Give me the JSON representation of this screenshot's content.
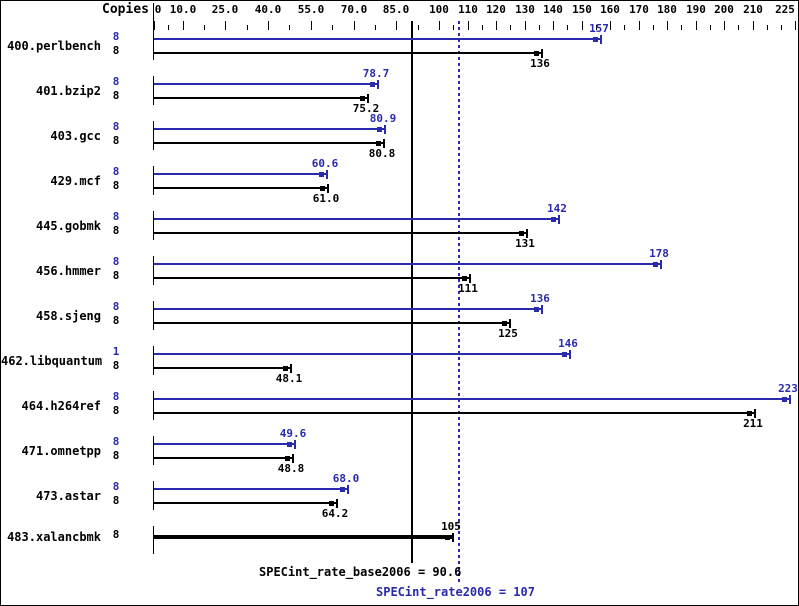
{
  "chart_data": {
    "type": "bar",
    "orientation": "horizontal",
    "title": "",
    "copies_header": "Copies",
    "accent_color": "#2a2aad",
    "series_colors": {
      "peak": "#2a2aad",
      "base": "#000000"
    },
    "axis": {
      "xlim": [
        0,
        235
      ],
      "grid": false,
      "major_ticks": [
        {
          "value": 0,
          "label": "0"
        },
        {
          "value": 10,
          "label": "10.0"
        },
        {
          "value": 25,
          "label": "25.0"
        },
        {
          "value": 40,
          "label": "40.0"
        },
        {
          "value": 55,
          "label": "55.0"
        },
        {
          "value": 70,
          "label": "70.0"
        },
        {
          "value": 85,
          "label": "85.0"
        },
        {
          "value": 100,
          "label": "100"
        },
        {
          "value": 110,
          "label": "110"
        },
        {
          "value": 120,
          "label": "120"
        },
        {
          "value": 130,
          "label": "130"
        },
        {
          "value": 140,
          "label": "140"
        },
        {
          "value": 150,
          "label": "150"
        },
        {
          "value": 160,
          "label": "160"
        },
        {
          "value": 170,
          "label": "170"
        },
        {
          "value": 180,
          "label": "180"
        },
        {
          "value": 190,
          "label": "190"
        },
        {
          "value": 200,
          "label": "200"
        },
        {
          "value": 210,
          "label": "210"
        },
        {
          "value": 225,
          "label": "225"
        }
      ],
      "minor_ticks": [
        5,
        17.5,
        32.5,
        47.5,
        62.5,
        77.5,
        92.5,
        105,
        115,
        125,
        135,
        145,
        155,
        165,
        175,
        185,
        195,
        205,
        215,
        220
      ]
    },
    "benchmarks": [
      {
        "name": "400.perlbench",
        "rows": [
          {
            "series": "peak",
            "copies": "8",
            "value": 157,
            "label": "157"
          },
          {
            "series": "base",
            "copies": "8",
            "value": 136,
            "label": "136"
          }
        ]
      },
      {
        "name": "401.bzip2",
        "rows": [
          {
            "series": "peak",
            "copies": "8",
            "value": 78.7,
            "label": "78.7"
          },
          {
            "series": "base",
            "copies": "8",
            "value": 75.2,
            "label": "75.2"
          }
        ]
      },
      {
        "name": "403.gcc",
        "rows": [
          {
            "series": "peak",
            "copies": "8",
            "value": 80.9,
            "label": "80.9"
          },
          {
            "series": "base",
            "copies": "8",
            "value": 80.8,
            "label": "80.8"
          }
        ]
      },
      {
        "name": "429.mcf",
        "rows": [
          {
            "series": "peak",
            "copies": "8",
            "value": 60.6,
            "label": "60.6"
          },
          {
            "series": "base",
            "copies": "8",
            "value": 61.0,
            "label": "61.0"
          }
        ]
      },
      {
        "name": "445.gobmk",
        "rows": [
          {
            "series": "peak",
            "copies": "8",
            "value": 142,
            "label": "142"
          },
          {
            "series": "base",
            "copies": "8",
            "value": 131,
            "label": "131"
          }
        ]
      },
      {
        "name": "456.hmmer",
        "rows": [
          {
            "series": "peak",
            "copies": "8",
            "value": 178,
            "label": "178"
          },
          {
            "series": "base",
            "copies": "8",
            "value": 111,
            "label": "111"
          }
        ]
      },
      {
        "name": "458.sjeng",
        "rows": [
          {
            "series": "peak",
            "copies": "8",
            "value": 136,
            "label": "136"
          },
          {
            "series": "base",
            "copies": "8",
            "value": 125,
            "label": "125"
          }
        ]
      },
      {
        "name": "462.libquantum",
        "rows": [
          {
            "series": "peak",
            "copies": "1",
            "value": 146,
            "label": "146"
          },
          {
            "series": "base",
            "copies": "8",
            "value": 48.1,
            "label": "48.1"
          }
        ]
      },
      {
        "name": "464.h264ref",
        "rows": [
          {
            "series": "peak",
            "copies": "8",
            "value": 223,
            "label": "223"
          },
          {
            "series": "base",
            "copies": "8",
            "value": 211,
            "label": "211"
          }
        ]
      },
      {
        "name": "471.omnetpp",
        "rows": [
          {
            "series": "peak",
            "copies": "8",
            "value": 49.6,
            "label": "49.6"
          },
          {
            "series": "base",
            "copies": "8",
            "value": 48.8,
            "label": "48.8"
          }
        ]
      },
      {
        "name": "473.astar",
        "rows": [
          {
            "series": "peak",
            "copies": "8",
            "value": 68.0,
            "label": "68.0"
          },
          {
            "series": "base",
            "copies": "8",
            "value": 64.2,
            "label": "64.2"
          }
        ]
      },
      {
        "name": "483.xalancbmk",
        "rows": [
          {
            "series": "base",
            "copies": "8",
            "value": 105,
            "label": "105",
            "thick": true
          }
        ]
      }
    ],
    "reference_lines": [
      {
        "series": "base",
        "style": "solid",
        "value": 90.6,
        "label": "SPECint_rate_base2006 = 90.6"
      },
      {
        "series": "peak",
        "style": "dotted",
        "value": 107,
        "label": "SPECint_rate2006 = 107"
      }
    ]
  }
}
